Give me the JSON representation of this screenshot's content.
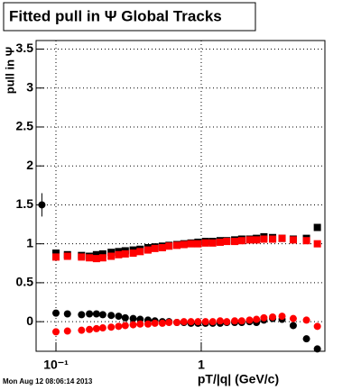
{
  "chart_data": {
    "type": "scatter",
    "title": "Fitted pull in  Ψ   Global Tracks",
    "x_label": "pT/|q| (GeV/c)",
    "y_label": "pull in Ψ",
    "footer": "Mon Aug 12 08:06:14 2013",
    "xlim": [
      0.073,
      7.1
    ],
    "ylim": [
      -0.38,
      3.61
    ],
    "xlog": true,
    "grid": true,
    "xticks": [
      {
        "value": 0.1,
        "label": "10⁻¹"
      },
      1
    ],
    "yticks": [
      0,
      0.5,
      1,
      1.5,
      2,
      2.5,
      3,
      3.5
    ],
    "x": [
      0.1,
      0.12,
      0.15,
      0.17,
      0.19,
      0.21,
      0.24,
      0.27,
      0.3,
      0.34,
      0.38,
      0.43,
      0.48,
      0.54,
      0.6,
      0.68,
      0.76,
      0.85,
      0.95,
      1.07,
      1.2,
      1.35,
      1.5,
      1.7,
      1.9,
      2.15,
      2.4,
      2.7,
      3.1,
      3.6,
      4.3,
      5.3,
      6.3
    ],
    "series": [
      {
        "color": "#000000",
        "marker": "square",
        "values": [
          0.88,
          0.86,
          0.85,
          0.84,
          0.86,
          0.87,
          0.89,
          0.9,
          0.91,
          0.92,
          0.93,
          0.95,
          0.96,
          0.97,
          0.98,
          0.99,
          1.0,
          1.01,
          1.02,
          1.03,
          1.03,
          1.04,
          1.04,
          1.05,
          1.06,
          1.06,
          1.07,
          1.09,
          1.08,
          1.07,
          1.06,
          1.07,
          1.21
        ]
      },
      {
        "color": "#ff0000",
        "marker": "square",
        "values": [
          0.83,
          0.84,
          0.83,
          0.82,
          0.81,
          0.82,
          0.84,
          0.86,
          0.87,
          0.88,
          0.9,
          0.92,
          0.94,
          0.95,
          0.97,
          0.98,
          0.99,
          1.0,
          1.0,
          1.01,
          1.01,
          1.02,
          1.03,
          1.03,
          1.04,
          1.05,
          1.05,
          1.06,
          1.06,
          1.07,
          1.05,
          1.04,
          1.0
        ]
      },
      {
        "color": "#000000",
        "marker": "circle",
        "values": [
          0.11,
          0.1,
          0.09,
          0.1,
          0.1,
          0.09,
          0.08,
          0.07,
          0.05,
          0.04,
          0.03,
          0.02,
          0.01,
          0.0,
          0.0,
          -0.01,
          -0.01,
          -0.02,
          -0.02,
          -0.02,
          -0.02,
          -0.02,
          -0.01,
          -0.01,
          -0.01,
          0.0,
          -0.01,
          0.02,
          0.04,
          0.03,
          -0.05,
          -0.22,
          -0.35
        ]
      },
      {
        "color": "#ff0000",
        "marker": "circle",
        "values": [
          -0.13,
          -0.12,
          -0.11,
          -0.1,
          -0.09,
          -0.08,
          -0.07,
          -0.06,
          -0.05,
          -0.04,
          -0.03,
          -0.03,
          -0.02,
          -0.02,
          -0.01,
          -0.01,
          0.0,
          0.0,
          0.0,
          0.0,
          0.0,
          0.01,
          0.0,
          0.01,
          0.01,
          0.02,
          0.03,
          0.05,
          0.06,
          0.07,
          0.04,
          0.02,
          -0.06
        ]
      }
    ],
    "extra_point": {
      "color": "#000000",
      "marker": "circle",
      "x": 0.08,
      "value": 1.5,
      "error": 0.15
    }
  }
}
